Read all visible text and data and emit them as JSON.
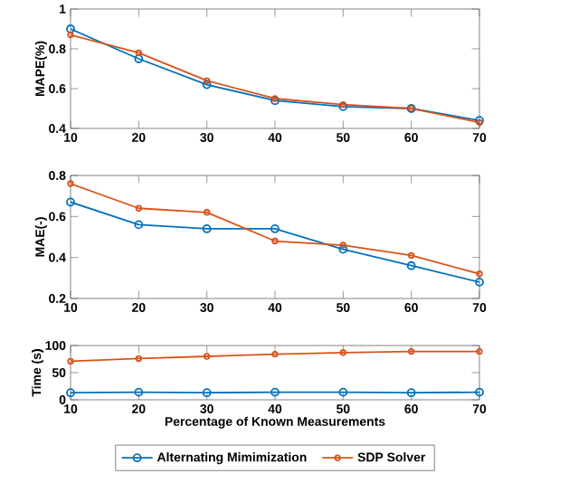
{
  "chart_data": [
    {
      "type": "line",
      "ylabel": "MAPE(%)",
      "x": [
        10,
        20,
        30,
        40,
        50,
        60,
        70
      ],
      "xlim": [
        10,
        70
      ],
      "xticks": [
        10,
        20,
        30,
        40,
        50,
        60,
        70
      ],
      "ylim": [
        0.4,
        1
      ],
      "yticks": [
        0.4,
        0.6,
        0.8,
        1
      ],
      "marker": "circle",
      "grid": false,
      "legend": false,
      "series": [
        {
          "color": "#0072bd",
          "values": [
            0.9,
            0.75,
            0.62,
            0.54,
            0.51,
            0.5,
            0.44
          ]
        },
        {
          "color": "#d95319",
          "values": [
            0.87,
            0.78,
            0.64,
            0.55,
            0.52,
            0.5,
            0.43
          ]
        }
      ]
    },
    {
      "type": "line",
      "ylabel": "MAE(-)",
      "x": [
        10,
        20,
        30,
        40,
        50,
        60,
        70
      ],
      "xlim": [
        10,
        70
      ],
      "xticks": [
        10,
        20,
        30,
        40,
        50,
        60,
        70
      ],
      "ylim": [
        0.2,
        0.8
      ],
      "yticks": [
        0.2,
        0.4,
        0.6,
        0.8
      ],
      "marker": "circle",
      "grid": false,
      "legend": false,
      "series": [
        {
          "color": "#0072bd",
          "values": [
            0.67,
            0.56,
            0.54,
            0.54,
            0.44,
            0.36,
            0.28
          ]
        },
        {
          "color": "#d95319",
          "values": [
            0.76,
            0.64,
            0.62,
            0.48,
            0.46,
            0.41,
            0.32
          ]
        }
      ]
    },
    {
      "type": "line",
      "ylabel": "Time (s)",
      "xlabel": "Percentage of Known Measurements",
      "x": [
        10,
        20,
        30,
        40,
        50,
        60,
        70
      ],
      "xlim": [
        10,
        70
      ],
      "xticks": [
        10,
        20,
        30,
        40,
        50,
        60,
        70
      ],
      "ylim": [
        0,
        100
      ],
      "yticks": [
        0,
        50,
        100
      ],
      "marker": "circle",
      "grid": false,
      "legend": "bottom",
      "series": [
        {
          "name": "Alternating Mimimization",
          "color": "#0072bd",
          "values": [
            13,
            14,
            13,
            14,
            14,
            13,
            14
          ]
        },
        {
          "name": "SDP Solver",
          "color": "#d95319",
          "values": [
            71,
            76,
            80,
            84,
            87,
            89,
            89
          ]
        }
      ]
    }
  ]
}
